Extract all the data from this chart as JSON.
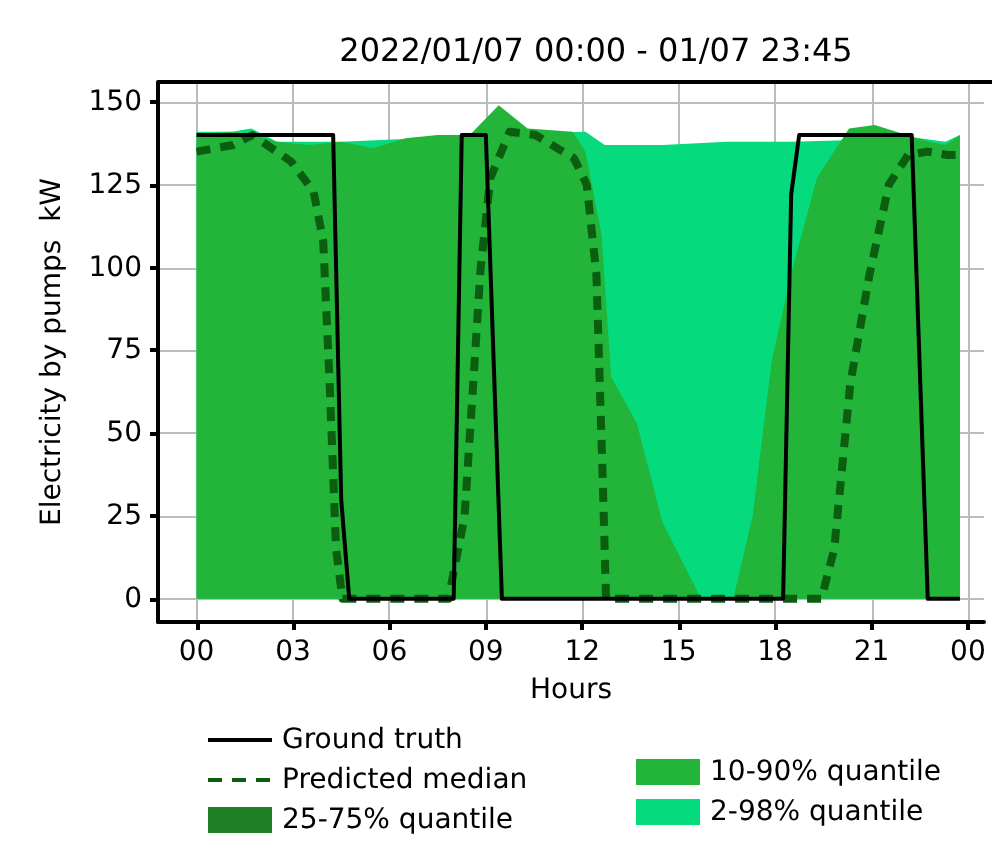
{
  "chart_data": {
    "type": "line",
    "title": "2022/01/07 00:00 - 01/07 23:45",
    "xlabel": "Hours",
    "ylabel": "Electricity by pumps  kW",
    "xlim": [
      -1.2,
      24.5
    ],
    "ylim": [
      -7,
      156
    ],
    "xticks": [
      {
        "value": 0,
        "label": "00"
      },
      {
        "value": 3,
        "label": "03"
      },
      {
        "value": 6,
        "label": "06"
      },
      {
        "value": 9,
        "label": "09"
      },
      {
        "value": 12,
        "label": "12"
      },
      {
        "value": 15,
        "label": "15"
      },
      {
        "value": 18,
        "label": "18"
      },
      {
        "value": 21,
        "label": "21"
      },
      {
        "value": 24,
        "label": "00"
      }
    ],
    "yticks": [
      0,
      25,
      50,
      75,
      100,
      125,
      150
    ],
    "grid": true,
    "legend": "bottom",
    "series": [
      {
        "name": "Ground truth",
        "color": "#000000",
        "line_style": "solid",
        "x": [
          0,
          4.25,
          4.5,
          4.75,
          8.0,
          8.25,
          8.5,
          9.0,
          9.5,
          18.25,
          18.5,
          18.75,
          22.25,
          22.75,
          23.75
        ],
        "values": [
          140,
          140,
          30,
          0,
          0,
          140,
          140,
          140,
          0,
          0,
          122,
          140,
          140,
          0,
          0
        ]
      },
      {
        "name": "Predicted median",
        "color": "#0b5e10",
        "line_style": "dashed",
        "x": [
          0,
          1.14,
          1.74,
          2.94,
          3.64,
          3.94,
          4.14,
          4.34,
          4.54,
          7.84,
          8.34,
          8.84,
          9.14,
          9.74,
          10.54,
          11.74,
          12.14,
          12.44,
          12.64,
          12.74,
          19.44,
          19.84,
          20.34,
          20.94,
          21.54,
          22.14,
          22.74,
          23.34,
          23.75
        ],
        "values": [
          135,
          137,
          140,
          132,
          123,
          108,
          65,
          15,
          0,
          0,
          25,
          100,
          127,
          141,
          140,
          133,
          125,
          98,
          35,
          0,
          0,
          15,
          65,
          98,
          125,
          134,
          135,
          134,
          134
        ]
      },
      {
        "name": "25-75% quantile",
        "type": "area",
        "color": "#1e7f24"
      },
      {
        "name": "10-90% quantile",
        "type": "area",
        "color": "#22b53a",
        "x": [
          0,
          1.1,
          1.7,
          2.5,
          3.5,
          4.5,
          5.5,
          6.5,
          7.5,
          8.5,
          9.4,
          10.3,
          11.7,
          12.1,
          12.6,
          12.9,
          13.7,
          14.5,
          15.7,
          16.7,
          17.3,
          17.9,
          18.5,
          19.3,
          20.3,
          21.1,
          22.1,
          22.8,
          23.3,
          23.75
        ],
        "values": [
          140,
          141,
          140,
          138,
          137,
          138,
          136,
          139,
          140,
          140,
          149,
          142,
          141,
          135,
          110,
          67,
          53,
          23,
          0,
          0,
          25,
          72,
          98,
          127,
          142,
          143,
          140,
          138,
          137,
          140
        ]
      },
      {
        "name": "2-98% quantile",
        "type": "area",
        "color": "#05db7d",
        "x": [
          0,
          1.1,
          1.7,
          2.5,
          4.5,
          7.0,
          8.5,
          12.1,
          12.7,
          14.5,
          16.5,
          18.5,
          22.5,
          23.3,
          23.75
        ],
        "values": [
          141,
          141,
          142,
          138,
          138,
          139,
          140,
          141,
          137,
          137,
          138,
          138,
          139,
          138,
          140
        ]
      }
    ]
  }
}
